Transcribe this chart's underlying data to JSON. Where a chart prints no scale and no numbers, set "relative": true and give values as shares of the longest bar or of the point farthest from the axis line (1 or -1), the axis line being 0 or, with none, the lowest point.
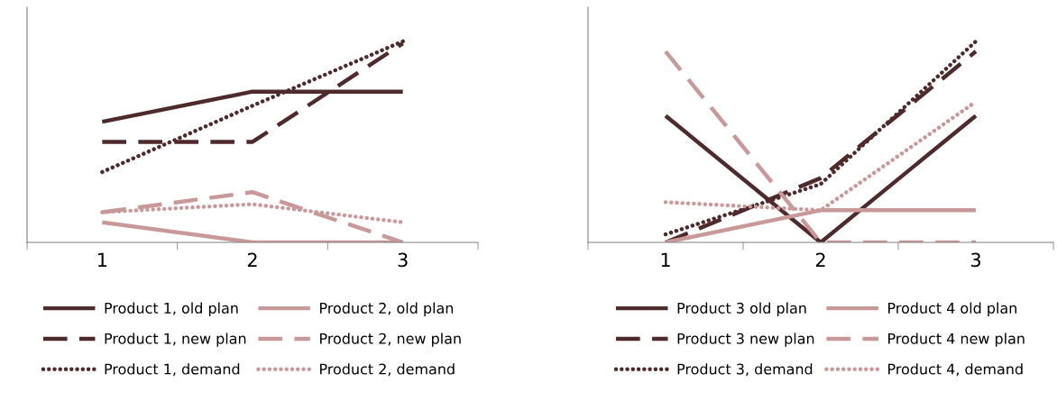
{
  "chart_data": [
    {
      "type": "line",
      "relative": true,
      "categories": [
        "1",
        "2",
        "3"
      ],
      "tick_labels": "x",
      "legend": "bottom",
      "grid": false,
      "marker": "none",
      "series": [
        {
          "name": "Product 1, old plan",
          "color": "#4f2a2c",
          "line_style": "solid",
          "values": [
            0.6,
            0.75,
            0.75
          ]
        },
        {
          "name": "Product 1, new plan",
          "color": "#4f2a2c",
          "line_style": "dashed",
          "values": [
            0.5,
            0.5,
            0.99
          ]
        },
        {
          "name": "Product 1, demand",
          "color": "#4f2a2c",
          "line_style": "dotted",
          "values": [
            0.35,
            0.68,
            1.0
          ]
        },
        {
          "name": "Product 2, old plan",
          "color": "#c9999a",
          "line_style": "solid",
          "values": [
            0.1,
            0,
            0
          ]
        },
        {
          "name": "Product 2, new plan",
          "color": "#c9999a",
          "line_style": "dashed",
          "values": [
            0.15,
            0.25,
            0
          ]
        },
        {
          "name": "Product 2, demand",
          "color": "#c9999a",
          "line_style": "dotted",
          "values": [
            0.15,
            0.19,
            0.1
          ]
        }
      ]
    },
    {
      "type": "line",
      "relative": true,
      "categories": [
        "1",
        "2",
        "3"
      ],
      "tick_labels": "x",
      "legend": "bottom",
      "grid": false,
      "marker": "none",
      "series": [
        {
          "name": "Product 3 old plan",
          "color": "#4f2a2c",
          "line_style": "solid",
          "values": [
            0.63,
            0,
            0.63
          ]
        },
        {
          "name": "Product 3 new plan",
          "color": "#4f2a2c",
          "line_style": "dashed",
          "values": [
            0,
            0.32,
            0.95
          ]
        },
        {
          "name": "Product 3, demand",
          "color": "#4f2a2c",
          "line_style": "dotted",
          "values": [
            0.04,
            0.29,
            1.0
          ]
        },
        {
          "name": "Product 4 old plan",
          "color": "#c9999a",
          "line_style": "solid",
          "values": [
            0,
            0.16,
            0.16
          ]
        },
        {
          "name": "Product 4 new plan",
          "color": "#c9999a",
          "line_style": "dashed",
          "values": [
            0.95,
            0,
            0
          ]
        },
        {
          "name": "Product 4, demand",
          "color": "#c9999a",
          "line_style": "dotted",
          "values": [
            0.2,
            0.16,
            0.7
          ]
        }
      ]
    }
  ]
}
